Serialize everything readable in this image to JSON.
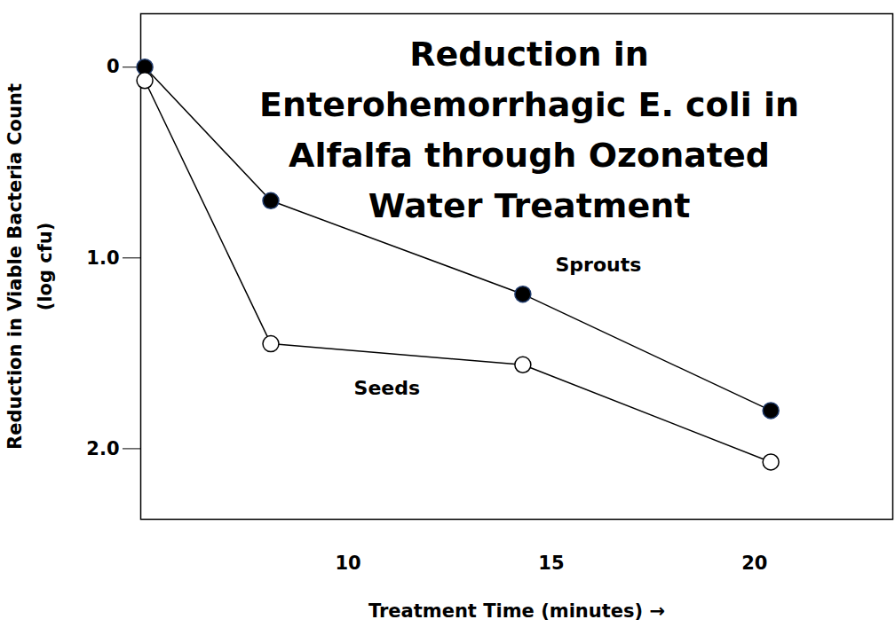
{
  "chart_data": {
    "type": "line",
    "title": "Reduction in\nEnterohemorrhagic E. coli in\nAlfalfa through Ozonated\nWater Treatment",
    "x_label": "Treatment Time (minutes)",
    "y_label": "Reduction in Viable Bacteria Count\n(log cfu)",
    "x": [
      5,
      8.1,
      14.3,
      20.4
    ],
    "series": [
      {
        "name": "Sprouts",
        "color": "#000000",
        "marker": "filled-circle",
        "values": [
          0,
          0.7,
          1.19,
          1.8
        ]
      },
      {
        "name": "Seeds",
        "color": "#000000",
        "marker": "open-circle",
        "values": [
          0.07,
          1.45,
          1.56,
          2.07
        ]
      }
    ],
    "xlim": [
      4.9,
      23.4
    ],
    "xticks": [
      10,
      15,
      20
    ],
    "ylim": [
      2.37,
      -0.28
    ],
    "yticks": [
      0,
      {
        "value": 1,
        "label": "1.0"
      },
      {
        "value": 2,
        "label": "2.0"
      }
    ],
    "grid": false
  }
}
